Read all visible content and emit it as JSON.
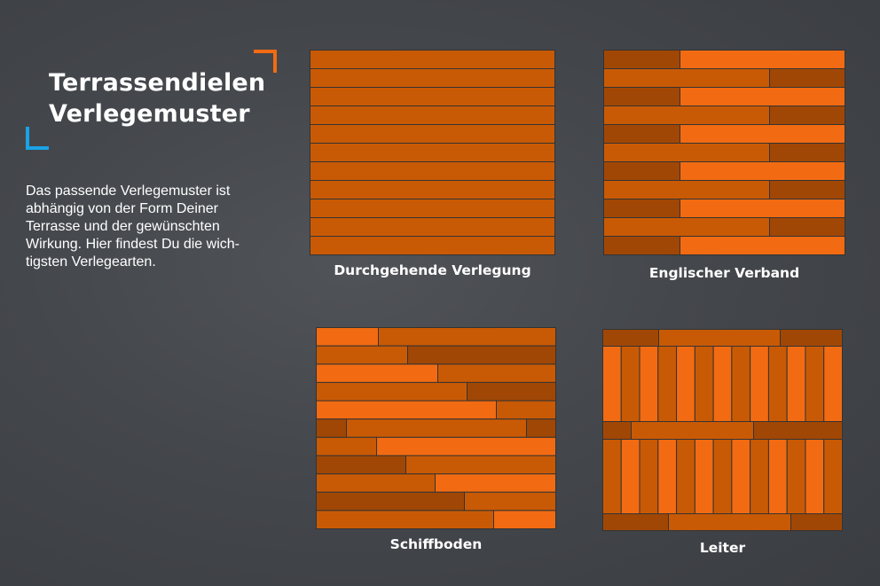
{
  "title": {
    "line1": "Terrassendielen",
    "line2": "Verlegemuster"
  },
  "intro": {
    "lines": [
      "Das passende Verlegemuster ist",
      "abhängig von der Form Deiner",
      "Terrasse und der gewünschten",
      "Wirkung. Hier findest Du die wich-",
      "tigsten Verlegearten."
    ]
  },
  "patterns": [
    {
      "label": "Durchgehende Verlegung"
    },
    {
      "label": "Englischer Verband"
    },
    {
      "label": "Schiffboden"
    },
    {
      "label": "Leiter"
    }
  ],
  "colors": {
    "board_dark": "#a14705",
    "board_mid": "#c95a05",
    "board_light": "#f26b12",
    "board_outline": "#333333",
    "accent_orange": "#f26b12",
    "accent_blue": "#1aa3e6"
  }
}
